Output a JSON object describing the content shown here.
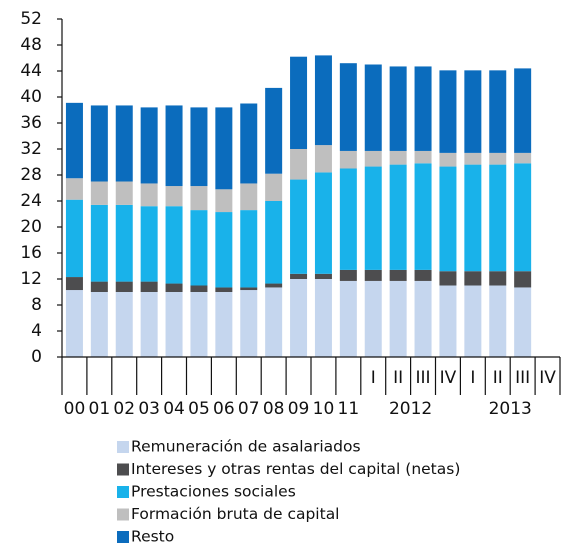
{
  "chart_data": {
    "type": "stacked_bar",
    "categories": [
      "00",
      "01",
      "02",
      "03",
      "04",
      "05",
      "06",
      "07",
      "08",
      "09",
      "10",
      "11",
      "I",
      "II",
      "III",
      "IV",
      "I",
      "II",
      "III",
      "IV"
    ],
    "group_labels": [
      "2012",
      "2013"
    ],
    "series": [
      {
        "name": "Remuneración de asalariados",
        "color": "#c5d6ee",
        "values": [
          10.3,
          10.0,
          10.0,
          10.0,
          10.0,
          10.0,
          10.0,
          10.3,
          10.7,
          12.0,
          12.0,
          11.7,
          11.7,
          11.7,
          11.7,
          11.0,
          11.0,
          11.0,
          10.7,
          null
        ]
      },
      {
        "name": "Intereses y otras rentas del capital (netas)",
        "color": "#4d4d4f",
        "values": [
          2.0,
          1.6,
          1.6,
          1.6,
          1.3,
          1.0,
          0.7,
          0.4,
          0.6,
          0.8,
          0.8,
          1.7,
          1.7,
          1.7,
          1.7,
          2.2,
          2.2,
          2.2,
          2.5,
          null
        ]
      },
      {
        "name": "Prestaciones sociales",
        "color": "#19b2ea",
        "values": [
          11.9,
          11.8,
          11.8,
          11.6,
          11.9,
          11.6,
          11.6,
          11.9,
          12.7,
          14.5,
          15.6,
          15.6,
          15.9,
          16.2,
          16.4,
          16.1,
          16.4,
          16.4,
          16.6,
          null
        ]
      },
      {
        "name": "Formación bruta de capital",
        "color": "#bfbfbf",
        "values": [
          3.3,
          3.6,
          3.6,
          3.5,
          3.1,
          3.7,
          3.5,
          4.1,
          4.2,
          4.7,
          4.2,
          2.7,
          2.4,
          2.1,
          1.9,
          2.1,
          1.8,
          1.8,
          1.6,
          null
        ]
      },
      {
        "name": "Resto",
        "color": "#0b6cbd",
        "values": [
          11.6,
          11.7,
          11.7,
          11.7,
          12.4,
          12.1,
          12.6,
          12.3,
          13.2,
          14.2,
          13.8,
          13.5,
          13.3,
          13.0,
          13.0,
          12.7,
          12.7,
          12.7,
          13.0,
          null
        ]
      }
    ],
    "ylim": [
      0,
      52
    ],
    "yticks": [
      0,
      4,
      8,
      12,
      16,
      20,
      24,
      28,
      32,
      36,
      40,
      44,
      48,
      52
    ]
  }
}
